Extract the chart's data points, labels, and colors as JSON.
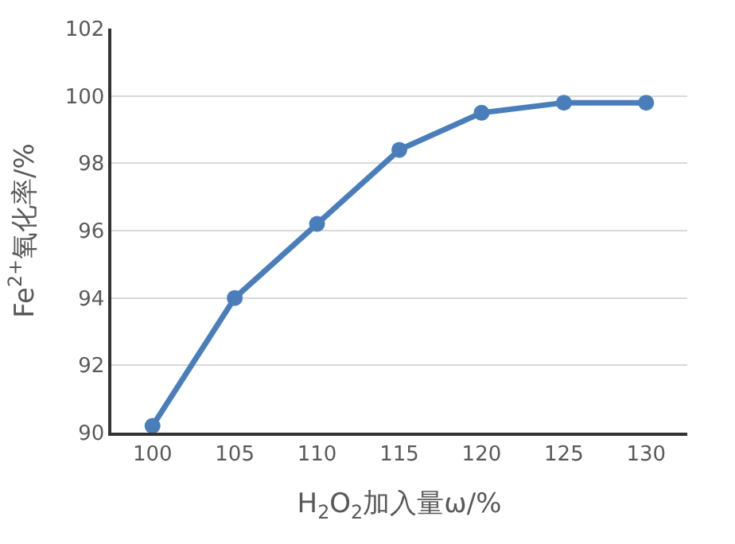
{
  "chart_data": {
    "type": "line",
    "xlabel": "H$_{2}$O$_{2}$加入量ω/%",
    "ylabel": "Fe$^{2+}$氧化率/%",
    "categories": [
      "100",
      "105",
      "110",
      "115",
      "120",
      "125",
      "130"
    ],
    "series": [
      {
        "color": "#4a7ebb",
        "values": [
          90.2,
          94.0,
          96.2,
          98.4,
          99.5,
          99.8,
          99.8
        ]
      }
    ],
    "ylim": [
      90,
      102
    ],
    "yticks": [
      90,
      92,
      94,
      96,
      98,
      100,
      102
    ],
    "grid": "y",
    "marker": "circle",
    "line_style": "solid",
    "legend": false
  }
}
